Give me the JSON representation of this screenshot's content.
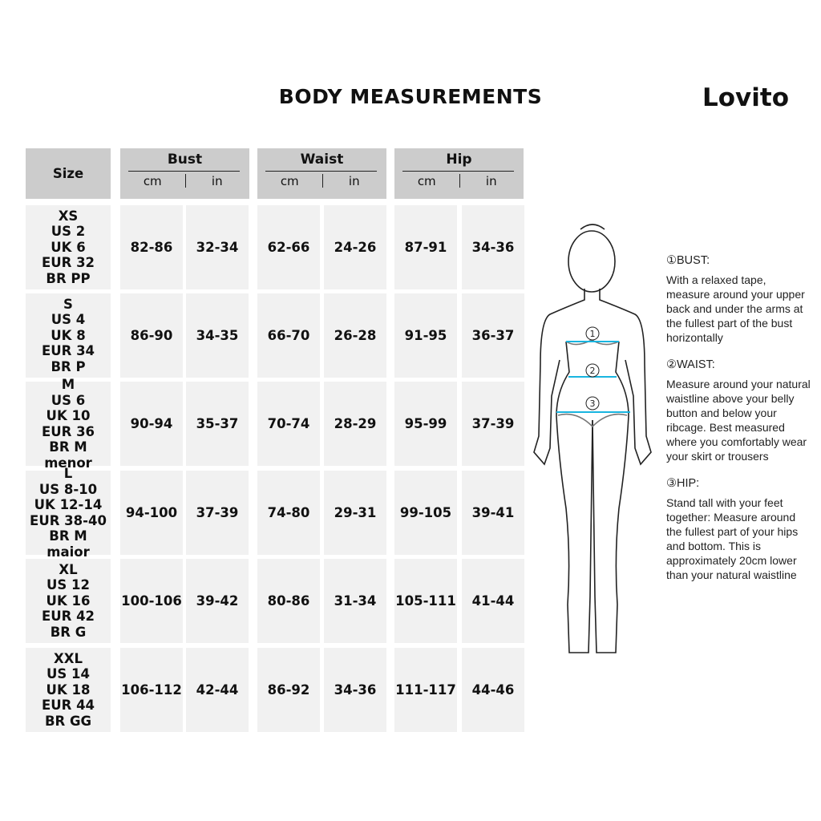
{
  "title": "BODY MEASUREMENTS",
  "brand": "Lovito",
  "table": {
    "size_header": "Size",
    "groups": [
      {
        "name": "Bust",
        "units": [
          "cm",
          "in"
        ]
      },
      {
        "name": "Waist",
        "units": [
          "cm",
          "in"
        ]
      },
      {
        "name": "Hip",
        "units": [
          "cm",
          "in"
        ]
      }
    ],
    "rows": [
      {
        "size": [
          "XS",
          "US 2",
          "UK 6",
          "EUR 32",
          "BR PP"
        ],
        "values": [
          "82-86",
          "32-34",
          "62-66",
          "24-26",
          "87-91",
          "34-36"
        ]
      },
      {
        "size": [
          "S",
          "US 4",
          "UK 8",
          "EUR 34",
          "BR P"
        ],
        "values": [
          "86-90",
          "34-35",
          "66-70",
          "26-28",
          "91-95",
          "36-37"
        ]
      },
      {
        "size": [
          "M",
          "US 6",
          "UK 10",
          "EUR 36",
          "BR M menor"
        ],
        "values": [
          "90-94",
          "35-37",
          "70-74",
          "28-29",
          "95-99",
          "37-39"
        ]
      },
      {
        "size": [
          "L",
          "US 8-10",
          "UK 12-14",
          "EUR 38-40",
          "BR M maior"
        ],
        "values": [
          "94-100",
          "37-39",
          "74-80",
          "29-31",
          "99-105",
          "39-41"
        ]
      },
      {
        "size": [
          "XL",
          "US 12",
          "UK 16",
          "EUR 42",
          "BR G"
        ],
        "values": [
          "100-106",
          "39-42",
          "80-86",
          "31-34",
          "105-111",
          "41-44"
        ]
      },
      {
        "size": [
          "XXL",
          "US 14",
          "UK 18",
          "EUR 44",
          "BR GG"
        ],
        "values": [
          "106-112",
          "42-44",
          "86-92",
          "34-36",
          "111-117",
          "44-46"
        ]
      }
    ]
  },
  "figure": {
    "markers": [
      "①",
      "②",
      "③"
    ],
    "tape_color": "#19b5e0"
  },
  "guide": [
    {
      "heading": "①BUST:",
      "text": "With a relaxed tape, measure around your upper back and under the arms at the fullest part of the bust horizontally"
    },
    {
      "heading": "②WAIST:",
      "text": "Measure around your natural waistline above your belly button and below your ribcage. Best measured where you comfortably wear your skirt or trousers"
    },
    {
      "heading": "③HIP:",
      "text": "Stand tall with your feet together: Measure around the fullest part of your hips and bottom. This is approximately 20cm lower than your natural waistline"
    }
  ]
}
